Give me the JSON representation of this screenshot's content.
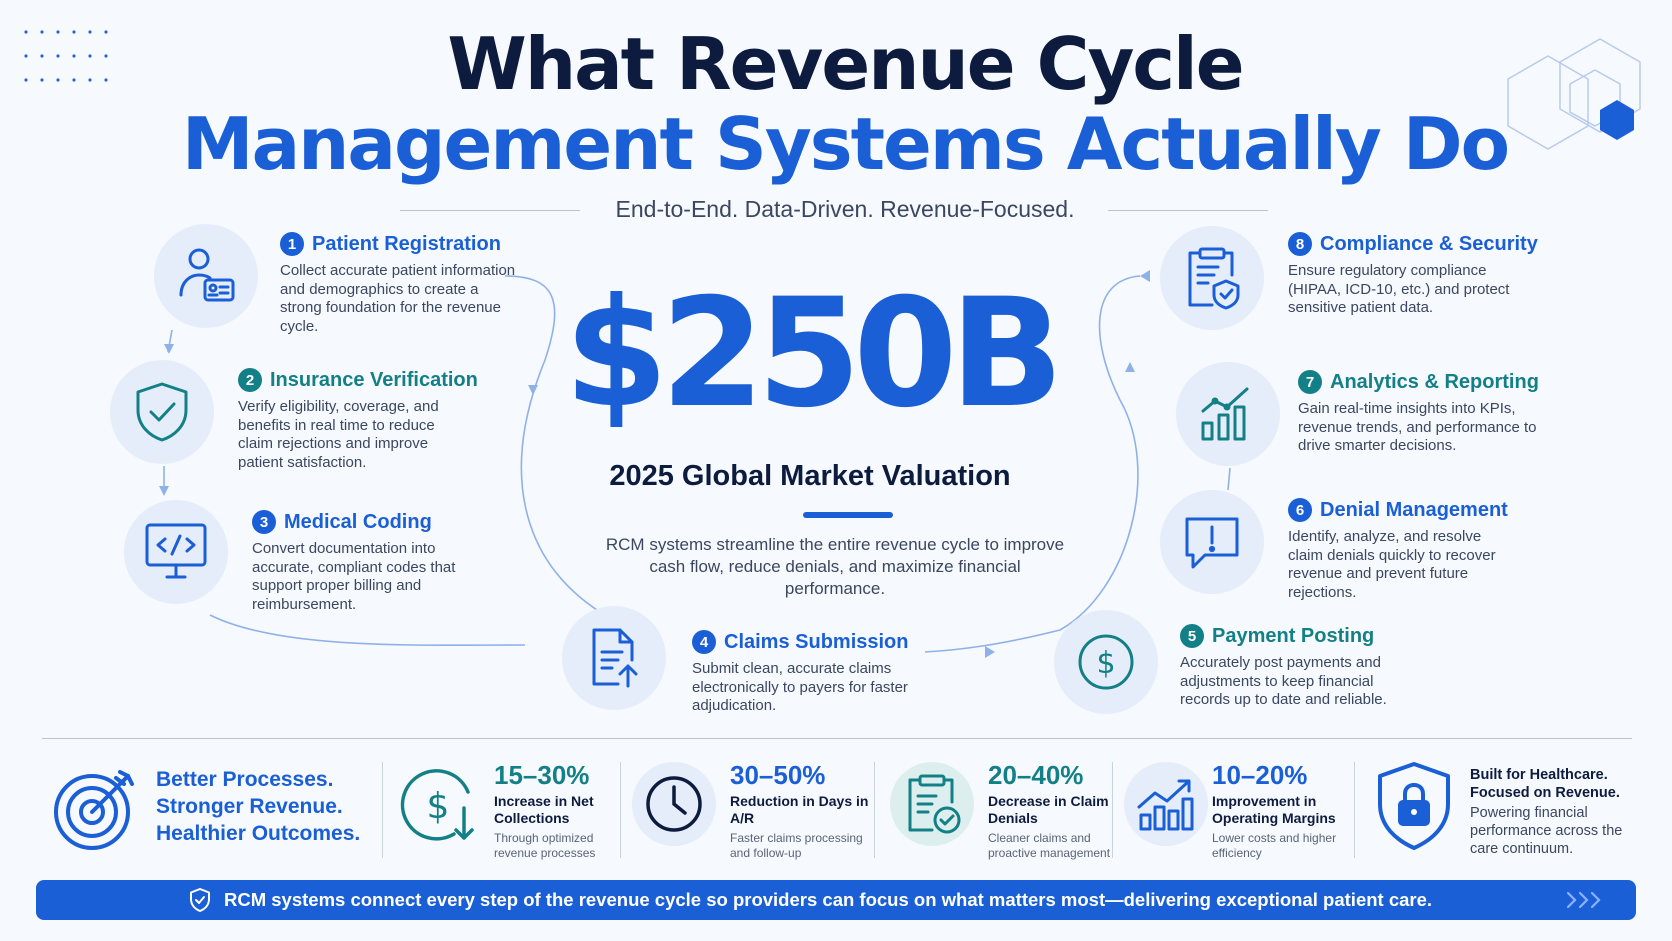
{
  "header": {
    "title_line1": "What Revenue Cycle",
    "title_line2": "Management Systems Actually Do",
    "subtitle": "End-to-End. Data-Driven. Revenue-Focused."
  },
  "center": {
    "stat": "$250B",
    "stat_label": "2025 Global Market Valuation",
    "description": "RCM systems streamline the entire revenue cycle to improve cash flow, reduce denials, and maximize financial performance."
  },
  "steps": [
    {
      "number": "1",
      "title": "Patient Registration",
      "description": "Collect accurate patient information and demographics to create a strong foundation for the revenue cycle.",
      "icon": "patient-id-icon",
      "color": "#1a5fd6"
    },
    {
      "number": "2",
      "title": "Insurance Verification",
      "description": "Verify eligibility, coverage, and benefits in real time to reduce claim rejections and improve patient satisfaction.",
      "icon": "shield-check-icon",
      "color": "#137f86"
    },
    {
      "number": "3",
      "title": "Medical Coding",
      "description": "Convert documentation into accurate, compliant codes that support proper billing and reimbursement.",
      "icon": "code-monitor-icon",
      "color": "#1a5fd6"
    },
    {
      "number": "4",
      "title": "Claims Submission",
      "description": "Submit clean, accurate claims electronically to payers for faster adjudication.",
      "icon": "document-upload-icon",
      "color": "#1a5fd6"
    },
    {
      "number": "5",
      "title": "Payment Posting",
      "description": "Accurately post payments and adjustments to keep financial records up to date and reliable.",
      "icon": "dollar-circle-icon",
      "color": "#137f86"
    },
    {
      "number": "6",
      "title": "Denial Management",
      "description": "Identify, analyze, and resolve claim denials quickly to recover revenue and prevent future rejections.",
      "icon": "alert-message-icon",
      "color": "#1a5fd6"
    },
    {
      "number": "7",
      "title": "Analytics & Reporting",
      "description": "Gain real-time insights into KPIs, revenue trends, and performance to drive smarter decisions.",
      "icon": "analytics-chart-icon",
      "color": "#137f86"
    },
    {
      "number": "8",
      "title": "Compliance & Security",
      "description": "Ensure regulatory compliance (HIPAA, ICD-10, etc.) and protect sensitive patient data.",
      "icon": "clipboard-shield-icon",
      "color": "#1a5fd6"
    }
  ],
  "bottom": {
    "tagline": [
      "Better Processes.",
      "Stronger Revenue.",
      "Healthier Outcomes."
    ],
    "metrics": [
      {
        "value": "15–30%",
        "label": "Increase in Net Collections",
        "sub": "Through optimized revenue processes",
        "icon": "dollar-down-icon",
        "color": "#137f86"
      },
      {
        "value": "30–50%",
        "label": "Reduction in Days in A/R",
        "sub": "Faster claims processing and follow-up",
        "icon": "clock-icon",
        "color": "#1a5fd6"
      },
      {
        "value": "20–40%",
        "label": "Decrease in Claim Denials",
        "sub": "Cleaner claims and proactive management",
        "icon": "clipboard-check-icon",
        "color": "#137f86"
      },
      {
        "value": "10–20%",
        "label": "Improvement in Operating Margins",
        "sub": "Lower costs and higher efficiency",
        "icon": "bar-growth-icon",
        "color": "#1a5fd6"
      }
    ],
    "built_title": "Built for Healthcare. Focused on Revenue.",
    "built_sub": "Powering financial performance across the care continuum."
  },
  "banner": {
    "text": "RCM systems connect every step of the revenue cycle so providers can focus on what matters most—delivering exceptional patient care."
  },
  "colors": {
    "accent": "#1a5fd6",
    "teal": "#137f86",
    "dark": "#0d1b3e",
    "background": "#f6f9fd"
  }
}
